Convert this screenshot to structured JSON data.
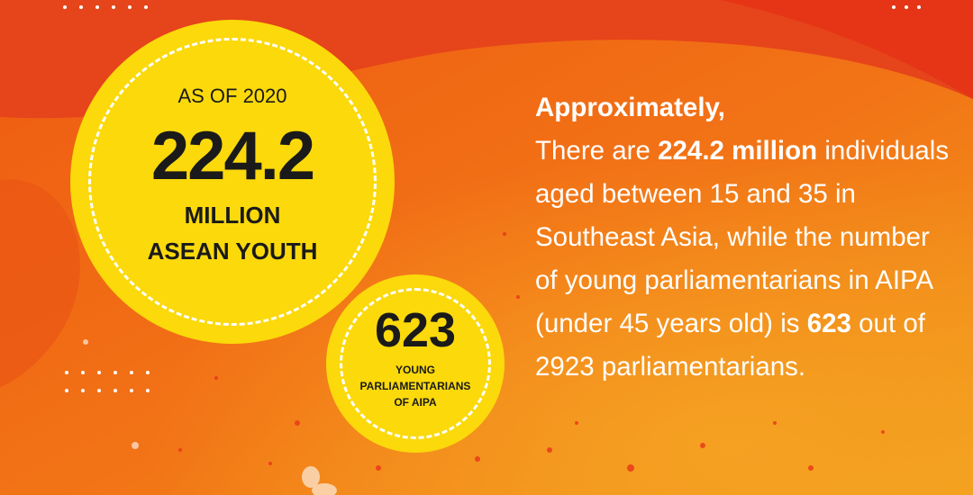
{
  "big_stat": {
    "label": "AS OF 2020",
    "value": "224.2",
    "unit_line1": "MILLION",
    "unit_line2": "ASEAN YOUTH"
  },
  "small_stat": {
    "value": "623",
    "line1": "YOUNG",
    "line2": "PARLIAMENTARIANS",
    "line3": "OF AIPA"
  },
  "paragraph": {
    "heading": "Approximately,",
    "part1": "There are ",
    "bold1": "224.2 million",
    "part2": " individuals aged between 15 and 35 in Southeast Asia, while the number of young parliamentarians in AIPA (under 45 years old) is ",
    "bold2": "623",
    "part3": " out of 2923 parliamentarians."
  },
  "colors": {
    "accent_yellow": "#fbd90b",
    "background_orange": "#f06a10",
    "background_red": "#e8401a",
    "text_white": "#ffffff",
    "text_dark": "#1a1a1a"
  }
}
